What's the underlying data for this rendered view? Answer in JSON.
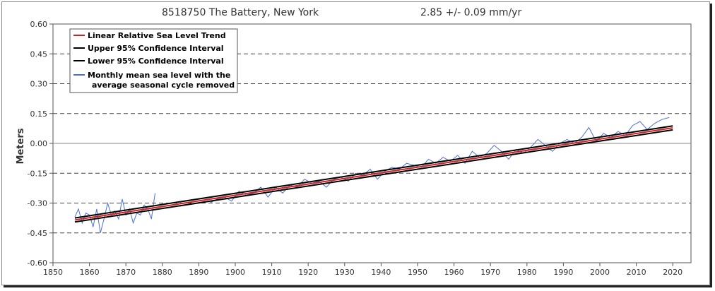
{
  "chart_data": {
    "type": "line",
    "title": "8518750 The Battery, New York",
    "trend_text": "2.85 +/-  0.09 mm/yr",
    "xlabel": "",
    "ylabel": "Meters",
    "xlim": [
      1850,
      2025
    ],
    "ylim": [
      -0.6,
      0.6
    ],
    "x_ticks": [
      "1850",
      "1860",
      "1870",
      "1880",
      "1890",
      "1900",
      "1910",
      "1920",
      "1930",
      "1940",
      "1950",
      "1960",
      "1970",
      "1980",
      "1990",
      "2000",
      "2010",
      "2020"
    ],
    "y_ticks": [
      "0.60",
      "0.45",
      "0.30",
      "0.15",
      "0.00",
      "-0.15",
      "-0.30",
      "-0.45",
      "-0.60"
    ],
    "grid": "horizontal dashed",
    "legend_position": "top-left",
    "legend": [
      "Linear Relative Sea Level Trend",
      "Upper 95% Confidence Interval",
      "Lower 95% Confidence Interval",
      "Monthly mean sea level with the",
      "average seasonal cycle removed"
    ],
    "colors": {
      "trend": "#cc2222",
      "confidence": "#000000",
      "monthly": "#4a6fd8",
      "grid": "#444444",
      "zero_line": "#888888"
    },
    "series": [
      {
        "name": "Linear Relative Sea Level Trend",
        "x": [
          1856,
          2020
        ],
        "y": [
          -0.385,
          0.078
        ]
      },
      {
        "name": "Upper 95% Confidence Interval",
        "x": [
          1856,
          2020
        ],
        "y": [
          -0.375,
          0.088
        ]
      },
      {
        "name": "Lower 95% Confidence Interval",
        "x": [
          1856,
          2020
        ],
        "y": [
          -0.395,
          0.068
        ]
      },
      {
        "name": "Monthly mean sea level with the average seasonal cycle removed",
        "segments": [
          {
            "x": [
              1856,
              1857,
              1858,
              1859,
              1860,
              1861,
              1862,
              1863,
              1864,
              1865,
              1866,
              1867,
              1868,
              1869,
              1870,
              1871,
              1872,
              1873,
              1874,
              1875,
              1876,
              1877,
              1878
            ],
            "y": [
              -0.37,
              -0.33,
              -0.4,
              -0.35,
              -0.36,
              -0.42,
              -0.33,
              -0.45,
              -0.38,
              -0.3,
              -0.36,
              -0.34,
              -0.38,
              -0.28,
              -0.36,
              -0.33,
              -0.4,
              -0.35,
              -0.36,
              -0.31,
              -0.33,
              -0.38,
              -0.25
            ]
          },
          {
            "x": [
              1893,
              1895,
              1897,
              1899,
              1901,
              1903,
              1905,
              1907,
              1909,
              1911,
              1913,
              1915,
              1917,
              1919,
              1921,
              1923,
              1925,
              1927,
              1929,
              1931,
              1933,
              1935,
              1937,
              1939,
              1941,
              1943,
              1945,
              1947,
              1949,
              1951,
              1953,
              1955,
              1957,
              1959,
              1961,
              1963,
              1965,
              1967,
              1969,
              1971,
              1973,
              1975,
              1977,
              1979,
              1981,
              1983,
              1985,
              1987,
              1989,
              1991,
              1993,
              1995,
              1997,
              1999,
              2001,
              2003,
              2005,
              2007,
              2009,
              2011,
              2013,
              2015,
              2017,
              2019
            ],
            "y": [
              -0.3,
              -0.28,
              -0.27,
              -0.29,
              -0.24,
              -0.26,
              -0.25,
              -0.22,
              -0.27,
              -0.22,
              -0.25,
              -0.21,
              -0.22,
              -0.18,
              -0.2,
              -0.19,
              -0.22,
              -0.18,
              -0.17,
              -0.19,
              -0.15,
              -0.16,
              -0.13,
              -0.18,
              -0.14,
              -0.12,
              -0.13,
              -0.1,
              -0.11,
              -0.12,
              -0.08,
              -0.1,
              -0.07,
              -0.09,
              -0.06,
              -0.1,
              -0.04,
              -0.07,
              -0.05,
              -0.01,
              -0.04,
              -0.08,
              -0.03,
              -0.05,
              -0.02,
              0.02,
              -0.01,
              -0.04,
              0.0,
              0.02,
              0.0,
              0.03,
              0.08,
              0.01,
              0.05,
              0.03,
              0.06,
              0.04,
              0.09,
              0.11,
              0.07,
              0.1,
              0.12,
              0.13
            ]
          }
        ]
      }
    ]
  }
}
